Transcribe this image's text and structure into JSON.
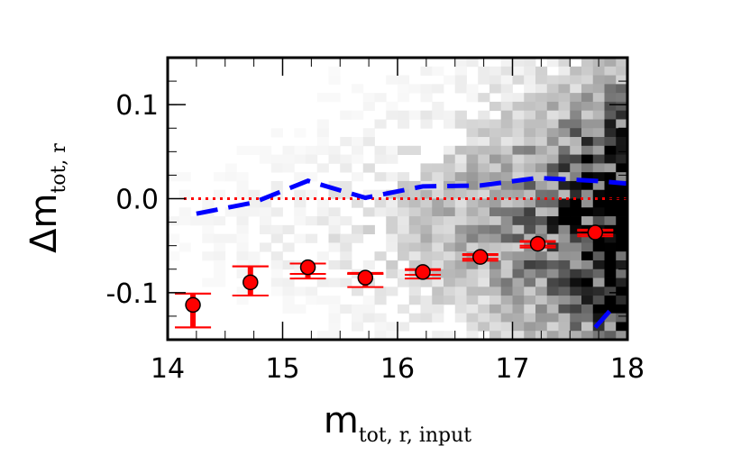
{
  "chart_data": {
    "type": "scatter",
    "xlabel": {
      "main": "m",
      "sub": "tot, r, input"
    },
    "ylabel": {
      "main": "Δm",
      "sub": "tot, r"
    },
    "xlim": [
      14,
      18
    ],
    "ylim": [
      -0.15,
      0.15
    ],
    "x_ticks": [
      14,
      15,
      16,
      17,
      18
    ],
    "x_tick_labels": [
      "14",
      "15",
      "16",
      "17",
      "18"
    ],
    "y_ticks": [
      -0.1,
      0.0,
      0.1
    ],
    "y_tick_labels": [
      "-0.1",
      "0.0",
      "0.1"
    ],
    "grid": false,
    "background_density": "grayscale 2D histogram of individual objects, density increasing toward m ≈ 17.5 and Δm ≈ -0.03",
    "series": [
      {
        "kind": "binned_median_with_errorbars",
        "marker": "circle",
        "color": "#ff0000",
        "points": [
          {
            "x": 14.22,
            "y": -0.113,
            "err_inner": [
              -0.137,
              -0.101
            ],
            "err_outer": [
              -0.137,
              -0.101
            ]
          },
          {
            "x": 14.72,
            "y": -0.089,
            "err_inner": [
              -0.103,
              -0.072
            ],
            "err_outer": [
              -0.103,
              -0.072
            ]
          },
          {
            "x": 15.22,
            "y": -0.073,
            "err_inner": [
              -0.08,
              -0.069
            ],
            "err_outer": [
              -0.085,
              -0.069
            ]
          },
          {
            "x": 15.72,
            "y": -0.084,
            "err_inner": [
              -0.08,
              -0.08
            ],
            "err_outer": [
              -0.094,
              -0.079
            ]
          },
          {
            "x": 16.22,
            "y": -0.078,
            "err_inner": [
              -0.081,
              -0.076
            ],
            "err_outer": [
              -0.085,
              -0.075
            ]
          },
          {
            "x": 16.72,
            "y": -0.062,
            "err_inner": [
              -0.064,
              -0.06
            ],
            "err_outer": [
              -0.066,
              -0.059
            ]
          },
          {
            "x": 17.22,
            "y": -0.048,
            "err_inner": [
              -0.05,
              -0.046
            ],
            "err_outer": [
              -0.052,
              -0.045
            ]
          },
          {
            "x": 17.72,
            "y": -0.036,
            "err_inner": [
              -0.038,
              -0.034
            ],
            "err_outer": [
              -0.04,
              -0.033
            ]
          }
        ]
      },
      {
        "kind": "dashed_line",
        "color": "#0000ff",
        "segments": [
          [
            [
              14.25,
              -0.016
            ],
            [
              14.75,
              -0.004
            ],
            [
              15.22,
              0.019
            ],
            [
              15.72,
              0.001
            ],
            [
              16.22,
              0.013
            ],
            [
              16.72,
              0.014
            ],
            [
              17.22,
              0.022
            ],
            [
              17.72,
              0.019
            ],
            [
              18.0,
              0.016
            ]
          ],
          [
            [
              17.72,
              -0.137
            ],
            [
              17.85,
              -0.119
            ]
          ]
        ]
      },
      {
        "kind": "reference_line",
        "color": "#ff0000",
        "style": "dotted",
        "y": 0.0
      }
    ]
  }
}
